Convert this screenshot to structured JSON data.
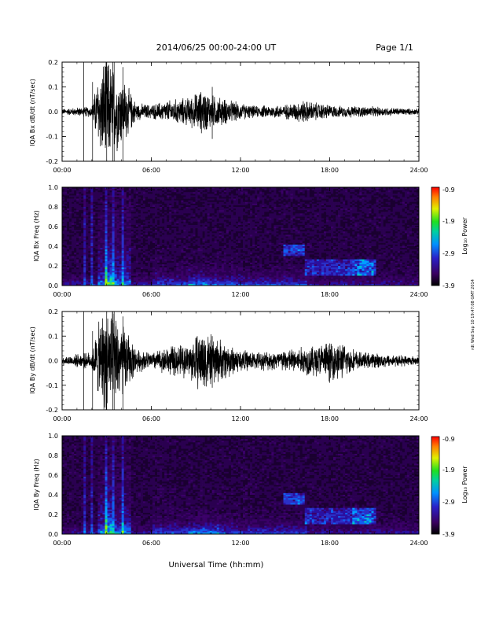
{
  "header": {
    "title": "2014/06/25  00:00-24:00 UT",
    "page": "Page 1/1"
  },
  "side_stamp": "rdt Wed Sep 10 19:47:08 GMT 2014",
  "xlabel": "Universal Time (hh:mm)",
  "colorbar": {
    "ticks": [
      "-0.9",
      "-1.9",
      "-2.9",
      "-3.9"
    ],
    "label": "Log₁₀ Power"
  },
  "chart_data": [
    {
      "type": "line",
      "title": "",
      "ylabel": "IQA Bx dB/dt (nT/sec)",
      "xlim": [
        0,
        24
      ],
      "ylim": [
        -0.2,
        0.2
      ],
      "x_ticks": [
        "00:00",
        "06:00",
        "12:00",
        "18:00",
        "24:00"
      ],
      "y_ticks": [
        "0.2",
        "0.1",
        "0.0",
        "-0.1",
        "-0.2"
      ],
      "series": [
        {
          "x": [
            0,
            2,
            2.4,
            2.9,
            3.1,
            3.5,
            4.2,
            5,
            6,
            7.2,
            8.5,
            9.5,
            10,
            12,
            13,
            15,
            16.2,
            18.5,
            20,
            24
          ],
          "amplitude": [
            0.01,
            0.02,
            0.12,
            0.2,
            0.19,
            0.15,
            0.11,
            0.03,
            0.025,
            0.04,
            0.05,
            0.08,
            0.06,
            0.03,
            0.02,
            0.025,
            0.04,
            0.02,
            0.02,
            0.01
          ]
        }
      ]
    },
    {
      "type": "heatmap",
      "title": "",
      "ylabel": "IQA Bx Freq (Hz)",
      "xlim": [
        0,
        24
      ],
      "ylim": [
        0.0,
        1.0
      ],
      "x_ticks": [
        "00:00",
        "06:00",
        "12:00",
        "18:00",
        "24:00"
      ],
      "y_ticks": [
        "1.0",
        "0.8",
        "0.6",
        "0.4",
        "0.2",
        "0.0"
      ],
      "zlim": [
        -3.9,
        -0.9
      ],
      "z_label": "Log10 Power"
    },
    {
      "type": "line",
      "title": "",
      "ylabel": "IQA By dB/dt (nT/sec)",
      "xlim": [
        0,
        24
      ],
      "ylim": [
        -0.2,
        0.2
      ],
      "x_ticks": [
        "00:00",
        "06:00",
        "12:00",
        "18:00",
        "24:00"
      ],
      "y_ticks": [
        "0.2",
        "0.1",
        "0.0",
        "-0.1",
        "-0.2"
      ],
      "series": [
        {
          "x": [
            0,
            2,
            2.4,
            2.9,
            3.1,
            3.5,
            4.2,
            5,
            6,
            7.2,
            8.5,
            9.5,
            10,
            12,
            13,
            15,
            16.2,
            18.5,
            20,
            24
          ],
          "amplitude": [
            0.015,
            0.03,
            0.12,
            0.2,
            0.2,
            0.17,
            0.12,
            0.04,
            0.03,
            0.05,
            0.06,
            0.12,
            0.09,
            0.04,
            0.03,
            0.04,
            0.05,
            0.07,
            0.03,
            0.015
          ]
        }
      ]
    },
    {
      "type": "heatmap",
      "title": "",
      "ylabel": "IQA By Freq (Hz)",
      "xlim": [
        0,
        24
      ],
      "ylim": [
        0.0,
        1.0
      ],
      "x_ticks": [
        "00:00",
        "06:00",
        "12:00",
        "18:00",
        "24:00"
      ],
      "y_ticks": [
        "1.0",
        "0.8",
        "0.6",
        "0.4",
        "0.2",
        "0.0"
      ],
      "zlim": [
        -3.9,
        -0.9
      ],
      "z_label": "Log10 Power"
    }
  ]
}
